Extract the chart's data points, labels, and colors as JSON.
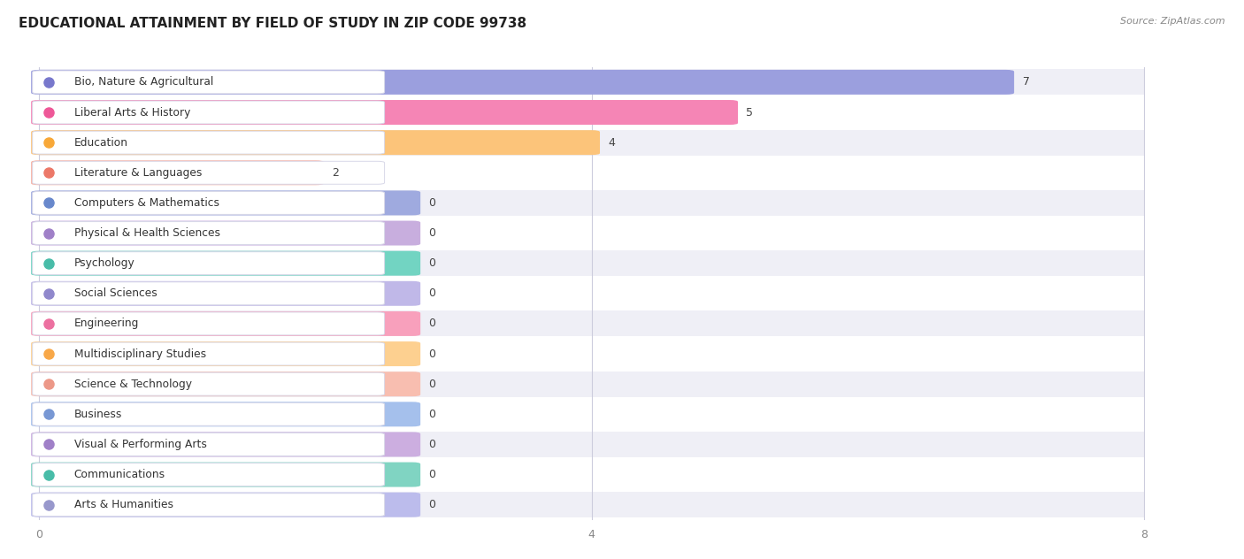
{
  "title": "EDUCATIONAL ATTAINMENT BY FIELD OF STUDY IN ZIP CODE 99738",
  "source": "Source: ZipAtlas.com",
  "categories": [
    "Bio, Nature & Agricultural",
    "Liberal Arts & History",
    "Education",
    "Literature & Languages",
    "Computers & Mathematics",
    "Physical & Health Sciences",
    "Psychology",
    "Social Sciences",
    "Engineering",
    "Multidisciplinary Studies",
    "Science & Technology",
    "Business",
    "Visual & Performing Arts",
    "Communications",
    "Arts & Humanities"
  ],
  "values": [
    7,
    5,
    4,
    2,
    0,
    0,
    0,
    0,
    0,
    0,
    0,
    0,
    0,
    0,
    0
  ],
  "bar_colors": [
    "#9B9FDE",
    "#F585B5",
    "#FCC47A",
    "#F8AFA0",
    "#9FAADF",
    "#C8AEDE",
    "#72D4C2",
    "#C0B8E8",
    "#F8A0BC",
    "#FDD090",
    "#F8BEB0",
    "#A5C0EC",
    "#CCAEE0",
    "#80D4C2",
    "#BCBCEC"
  ],
  "dot_colors": [
    "#7878CC",
    "#EE5898",
    "#F8A838",
    "#EC7868",
    "#6888CC",
    "#A080C8",
    "#48BCA8",
    "#9088CC",
    "#EC70A0",
    "#F8A848",
    "#EC9888",
    "#7898D4",
    "#A080C8",
    "#48BCA8",
    "#9898CC"
  ],
  "xlim_max": 8,
  "xticks": [
    0,
    4,
    8
  ],
  "bg_color": "#ffffff",
  "row_colors": [
    "#efefF6",
    "#ffffff"
  ],
  "bar_bg_color": "#e8e8f4",
  "title_fontsize": 11,
  "label_fontsize": 8.8,
  "value_fontsize": 9
}
